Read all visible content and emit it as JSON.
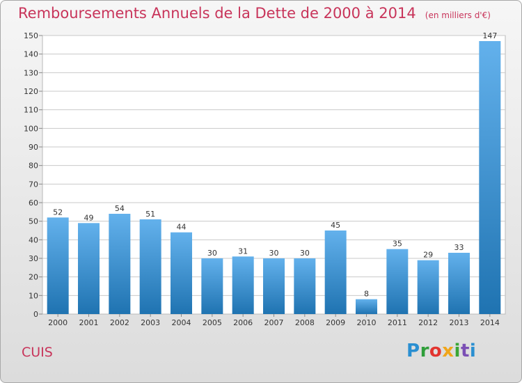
{
  "title": "Remboursements Annuels de la Dette de 2000 à 2014",
  "unit": "(en milliers d'€)",
  "commune": "CUIS",
  "brand": {
    "text": "Proxiti",
    "colors": [
      "#2a8fd1",
      "#2f9e3a",
      "#e2342f",
      "#f0a61b",
      "#3aa635",
      "#7b4fb5",
      "#2a8fd1"
    ]
  },
  "colors": {
    "title": "#c8345a",
    "bar_light": "#63b1ec",
    "bar_dark": "#1f73b1",
    "grid": "#c9c9c9"
  },
  "chart_data": {
    "type": "bar",
    "categories": [
      "2000",
      "2001",
      "2002",
      "2003",
      "2004",
      "2005",
      "2006",
      "2007",
      "2008",
      "2009",
      "2010",
      "2011",
      "2012",
      "2013",
      "2014"
    ],
    "values": [
      52,
      49,
      54,
      51,
      44,
      30,
      31,
      30,
      30,
      45,
      8,
      35,
      29,
      33,
      147
    ],
    "ylim": [
      0,
      150
    ],
    "yticks": [
      0,
      10,
      20,
      30,
      40,
      50,
      60,
      70,
      80,
      90,
      100,
      110,
      120,
      130,
      140,
      150
    ],
    "grid": true,
    "data_labels": true,
    "xlabel": "",
    "ylabel": ""
  }
}
